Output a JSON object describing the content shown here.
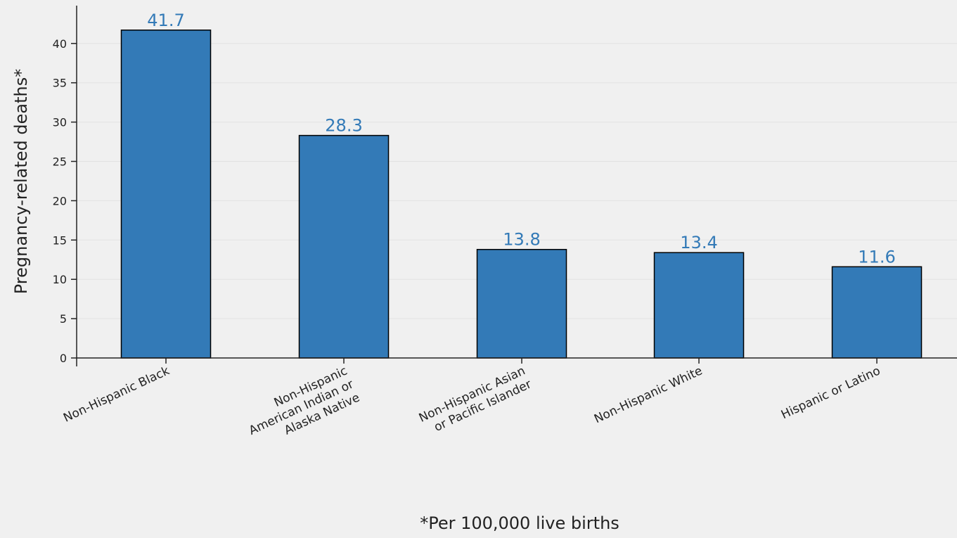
{
  "chart_data": {
    "type": "bar",
    "categories": [
      [
        "Non-Hispanic Black"
      ],
      [
        "Non-Hispanic",
        "American Indian or",
        "Alaska Native"
      ],
      [
        "Non-Hispanic Asian",
        "or Pacific Islander"
      ],
      [
        "Non-Hispanic White"
      ],
      [
        "Hispanic or Latino"
      ]
    ],
    "values": [
      41.7,
      28.3,
      13.8,
      13.4,
      11.6
    ],
    "value_labels": [
      "41.7",
      "28.3",
      "13.8",
      "13.4",
      "11.6"
    ],
    "title": "",
    "xlabel": "",
    "ylabel": "Pregnancy-related deaths*",
    "ylim": [
      0,
      45
    ],
    "yticks": [
      0,
      5,
      10,
      15,
      20,
      25,
      30,
      35,
      40
    ],
    "grid": true,
    "legend": "none",
    "footnote": "*Per 100,000 live births",
    "colors": {
      "bar_fill": "#337ab7",
      "bar_stroke": "#000000",
      "value_label": "#337ab7",
      "gridline": "#e2e2e2",
      "axis": "#222222"
    }
  }
}
